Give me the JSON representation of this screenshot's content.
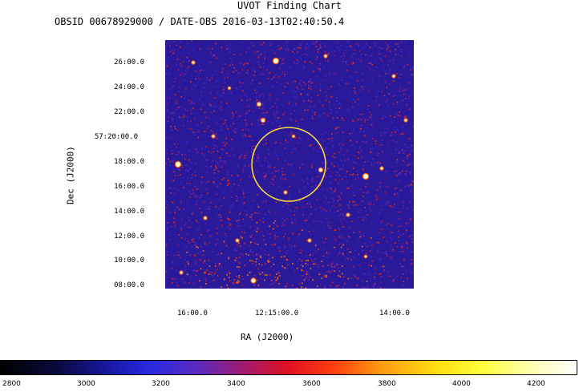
{
  "title": "UVOT Finding Chart",
  "subtitle": "OBSID 00678929000 / DATE-OBS 2016-03-13T02:40:50.4",
  "axes": {
    "xlabel": "RA (J2000)",
    "ylabel": "Dec (J2000)",
    "yticks": [
      "26:00.0",
      "24:00.0",
      "22:00.0",
      "57:20:00.0",
      "18:00.0",
      "16:00.0",
      "14:00.0",
      "12:00.0",
      "10:00.0",
      "08:00.0"
    ],
    "xticks": [
      "16:00.0",
      "12:15:00.0",
      "14:00.0"
    ]
  },
  "colorbar": {
    "ticks": [
      "2800",
      "3000",
      "3200",
      "3400",
      "3600",
      "3800",
      "4000",
      "4200"
    ]
  },
  "colors": {
    "circle": "#ffe23a",
    "background": "#2a1a9a"
  }
}
